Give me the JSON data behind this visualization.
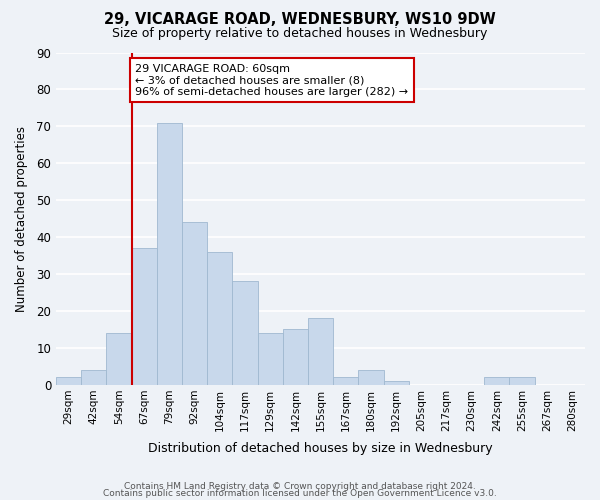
{
  "title": "29, VICARAGE ROAD, WEDNESBURY, WS10 9DW",
  "subtitle": "Size of property relative to detached houses in Wednesbury",
  "xlabel": "Distribution of detached houses by size in Wednesbury",
  "ylabel": "Number of detached properties",
  "bar_color": "#c8d8eb",
  "bar_edge_color": "#a0b8d0",
  "categories": [
    "29sqm",
    "42sqm",
    "54sqm",
    "67sqm",
    "79sqm",
    "92sqm",
    "104sqm",
    "117sqm",
    "129sqm",
    "142sqm",
    "155sqm",
    "167sqm",
    "180sqm",
    "192sqm",
    "205sqm",
    "217sqm",
    "230sqm",
    "242sqm",
    "255sqm",
    "267sqm",
    "280sqm"
  ],
  "values": [
    2,
    4,
    14,
    37,
    71,
    44,
    36,
    28,
    14,
    15,
    18,
    2,
    4,
    1,
    0,
    0,
    0,
    2,
    2,
    0,
    0
  ],
  "ylim": [
    0,
    90
  ],
  "yticks": [
    0,
    10,
    20,
    30,
    40,
    50,
    60,
    70,
    80,
    90
  ],
  "vline_color": "#cc0000",
  "annotation_title": "29 VICARAGE ROAD: 60sqm",
  "annotation_line1": "← 3% of detached houses are smaller (8)",
  "annotation_line2": "96% of semi-detached houses are larger (282) →",
  "annotation_box_color": "#ffffff",
  "annotation_box_edge": "#cc0000",
  "footer1": "Contains HM Land Registry data © Crown copyright and database right 2024.",
  "footer2": "Contains public sector information licensed under the Open Government Licence v3.0.",
  "background_color": "#eef2f7",
  "grid_color": "#ffffff"
}
